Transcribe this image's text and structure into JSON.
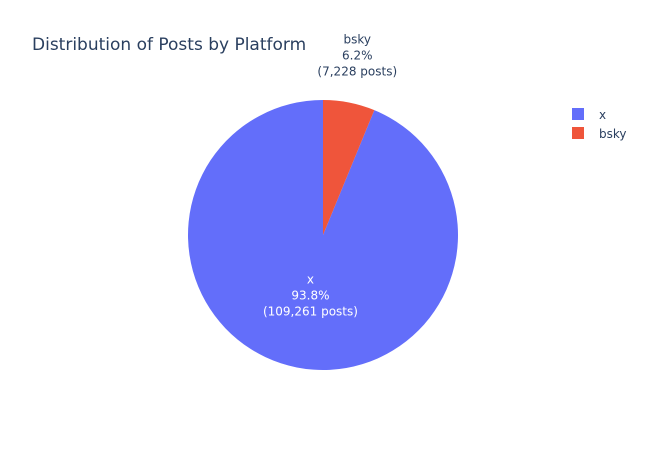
{
  "chart_data": {
    "type": "pie",
    "title": "Distribution of Posts by Platform",
    "slices": [
      {
        "label": "x",
        "value": 109261,
        "percent": "93.8%",
        "count_text": "(109,261 posts)",
        "color": "#636efa",
        "text_color": "#ffffff"
      },
      {
        "label": "bsky",
        "value": 7228,
        "percent": "6.2%",
        "count_text": "(7,228 posts)",
        "color": "#ef553b",
        "text_color": "#2a3f5f"
      }
    ],
    "legend": {
      "placement": "top-right",
      "entries": [
        {
          "label": "x",
          "color": "#636efa"
        },
        {
          "label": "bsky",
          "color": "#ef553b"
        }
      ]
    }
  }
}
